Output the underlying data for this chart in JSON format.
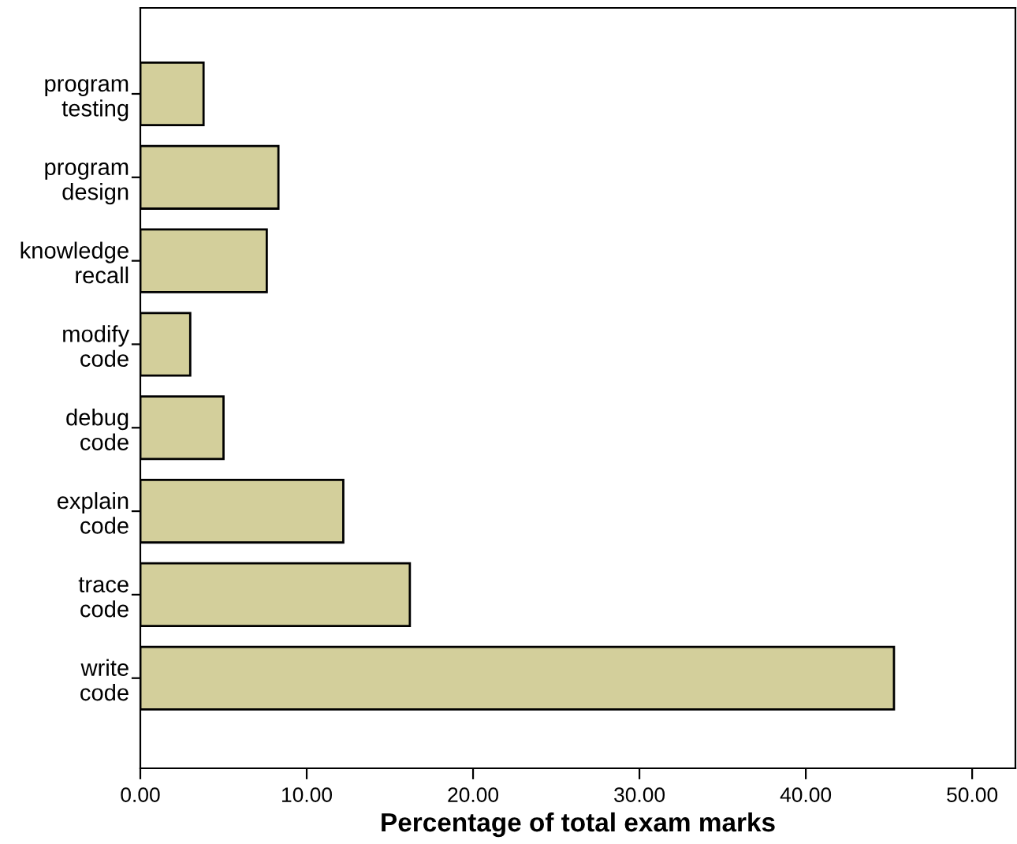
{
  "chart_data": {
    "type": "bar",
    "orientation": "horizontal",
    "xlabel": "Percentage of total exam marks",
    "categories": [
      "program\ntesting",
      "program\ndesign",
      "knowledge\nrecall",
      "modify\ncode",
      "debug\ncode",
      "explain\ncode",
      "trace\ncode",
      "write\ncode"
    ],
    "values": [
      3.8,
      8.3,
      7.6,
      3.0,
      5.0,
      12.2,
      16.2,
      45.3
    ],
    "color": "#d3cf9b",
    "xlim": [
      0,
      52.6
    ],
    "xticks": [
      {
        "value": 0,
        "label": "0.00"
      },
      {
        "value": 10,
        "label": "10.00"
      },
      {
        "value": 20,
        "label": "20.00"
      },
      {
        "value": 30,
        "label": "30.00"
      },
      {
        "value": 40,
        "label": "40.00"
      },
      {
        "value": 50,
        "label": "50.00"
      }
    ],
    "grid": false
  }
}
